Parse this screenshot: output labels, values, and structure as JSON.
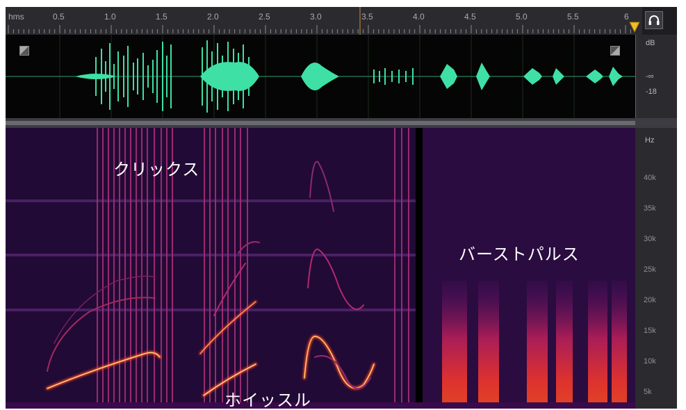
{
  "ruler": {
    "unit_label": "hms",
    "ticks": [
      "0.5",
      "1.0",
      "1.5",
      "2.0",
      "2.5",
      "3.0",
      "3.5",
      "4.0",
      "4.5",
      "5.0",
      "5.5",
      "6"
    ]
  },
  "wave_scale": {
    "db_label": "dB",
    "inf_label": "-∞",
    "minus18_label": "-18"
  },
  "freq_scale": {
    "unit_label": "Hz",
    "ticks": [
      "40k",
      "35k",
      "30k",
      "25k",
      "20k",
      "15k",
      "10k",
      "5k"
    ]
  },
  "annotations": {
    "clicks": "クリックス",
    "whistle": "ホイッスル",
    "burst_pulse": "バーストパルス"
  },
  "icons": {
    "headphone": "headphones-icon",
    "playhead": "playhead-marker-icon"
  },
  "colors": {
    "waveform": "#3ee0a6",
    "spectrogram_bg": "#1a0428",
    "spectrogram_hot": "#ff3a2a",
    "playhead": "#f0c020"
  }
}
